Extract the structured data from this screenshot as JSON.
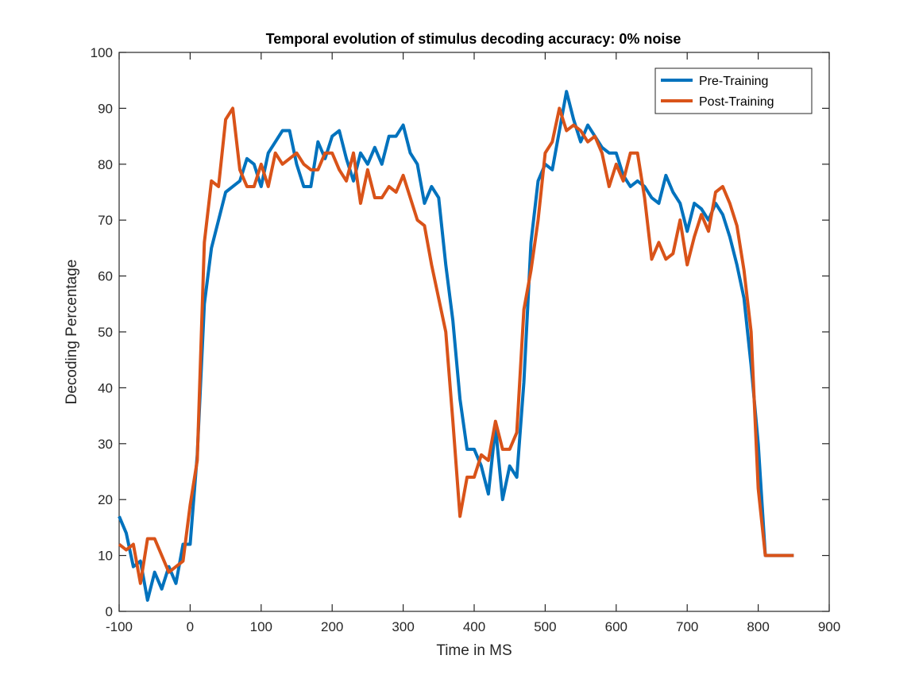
{
  "chart_data": {
    "type": "line",
    "title": "Temporal evolution of stimulus decoding accuracy: 0% noise",
    "xlabel": "Time in MS",
    "ylabel": "Decoding Percentage",
    "xlim": [
      -100,
      900
    ],
    "ylim": [
      0,
      100
    ],
    "xticks": [
      -100,
      0,
      100,
      200,
      300,
      400,
      500,
      600,
      700,
      800,
      900
    ],
    "yticks": [
      0,
      10,
      20,
      30,
      40,
      50,
      60,
      70,
      80,
      90,
      100
    ],
    "grid": false,
    "legend_position": "top-right",
    "x": [
      -100,
      -90,
      -80,
      -70,
      -60,
      -50,
      -40,
      -30,
      -20,
      -10,
      0,
      10,
      20,
      30,
      40,
      50,
      60,
      70,
      80,
      90,
      100,
      110,
      120,
      130,
      140,
      150,
      160,
      170,
      180,
      190,
      200,
      210,
      220,
      230,
      240,
      250,
      260,
      270,
      280,
      290,
      300,
      310,
      320,
      330,
      340,
      350,
      360,
      370,
      380,
      390,
      400,
      410,
      420,
      430,
      440,
      450,
      460,
      470,
      480,
      490,
      500,
      510,
      520,
      530,
      540,
      550,
      560,
      570,
      580,
      590,
      600,
      610,
      620,
      630,
      640,
      650,
      660,
      670,
      680,
      690,
      700,
      710,
      720,
      730,
      740,
      750,
      760,
      770,
      780,
      790,
      800,
      810,
      820,
      830,
      840,
      850
    ],
    "series": [
      {
        "name": "Pre-Training",
        "color": "#0072BD",
        "values": [
          17,
          14,
          8,
          9,
          2,
          7,
          4,
          8,
          5,
          12,
          12,
          28,
          55,
          65,
          70,
          75,
          76,
          77,
          81,
          80,
          76,
          82,
          84,
          86,
          86,
          80,
          76,
          76,
          84,
          81,
          85,
          86,
          81,
          77,
          82,
          80,
          83,
          80,
          85,
          85,
          87,
          82,
          80,
          73,
          76,
          74,
          62,
          52,
          38,
          29,
          29,
          26,
          21,
          33,
          20,
          26,
          24,
          41,
          66,
          77,
          80,
          79,
          86,
          93,
          88,
          84,
          87,
          85,
          83,
          82,
          82,
          78,
          76,
          77,
          76,
          74,
          73,
          78,
          75,
          73,
          68,
          73,
          72,
          70,
          73,
          71,
          67,
          62,
          56,
          44,
          30,
          10,
          10,
          10,
          10,
          10
        ]
      },
      {
        "name": "Post-Training",
        "color": "#D95319",
        "values": [
          12,
          11,
          12,
          5,
          13,
          13,
          10,
          7,
          8,
          9,
          19,
          27,
          66,
          77,
          76,
          88,
          90,
          79,
          76,
          76,
          80,
          76,
          82,
          80,
          81,
          82,
          80,
          79,
          79,
          82,
          82,
          79,
          77,
          82,
          73,
          79,
          74,
          74,
          76,
          75,
          78,
          74,
          70,
          69,
          62,
          56,
          50,
          34,
          17,
          24,
          24,
          28,
          27,
          34,
          29,
          29,
          32,
          54,
          61,
          70,
          82,
          84,
          90,
          86,
          87,
          86,
          84,
          85,
          82,
          76,
          80,
          77,
          82,
          82,
          74,
          63,
          66,
          63,
          64,
          70,
          62,
          67,
          71,
          68,
          75,
          76,
          73,
          69,
          61,
          50,
          22,
          10,
          10,
          10,
          10,
          10
        ]
      }
    ]
  }
}
